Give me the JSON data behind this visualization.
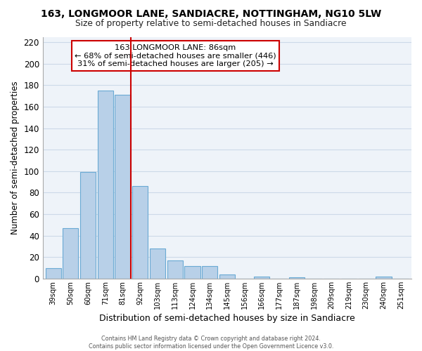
{
  "title": "163, LONGMOOR LANE, SANDIACRE, NOTTINGHAM, NG10 5LW",
  "subtitle": "Size of property relative to semi-detached houses in Sandiacre",
  "xlabel": "Distribution of semi-detached houses by size in Sandiacre",
  "ylabel": "Number of semi-detached properties",
  "categories": [
    "39sqm",
    "50sqm",
    "60sqm",
    "71sqm",
    "81sqm",
    "92sqm",
    "103sqm",
    "113sqm",
    "124sqm",
    "134sqm",
    "145sqm",
    "156sqm",
    "166sqm",
    "177sqm",
    "187sqm",
    "198sqm",
    "209sqm",
    "219sqm",
    "230sqm",
    "240sqm",
    "251sqm"
  ],
  "values": [
    10,
    47,
    99,
    175,
    171,
    86,
    28,
    17,
    12,
    12,
    4,
    0,
    2,
    0,
    1,
    0,
    0,
    0,
    0,
    2,
    0
  ],
  "bar_color": "#b8d0e8",
  "bar_edge_color": "#6aaad4",
  "highlight_color": "#cc0000",
  "annotation_title": "163 LONGMOOR LANE: 86sqm",
  "annotation_line1": "← 68% of semi-detached houses are smaller (446)",
  "annotation_line2": "31% of semi-detached houses are larger (205) →",
  "annotation_box_edge": "#cc0000",
  "ylim": [
    0,
    225
  ],
  "yticks": [
    0,
    20,
    40,
    60,
    80,
    100,
    120,
    140,
    160,
    180,
    200,
    220
  ],
  "footer1": "Contains HM Land Registry data © Crown copyright and database right 2024.",
  "footer2": "Contains public sector information licensed under the Open Government Licence v3.0.",
  "background_color": "#ffffff",
  "grid_color": "#ccd9e8"
}
